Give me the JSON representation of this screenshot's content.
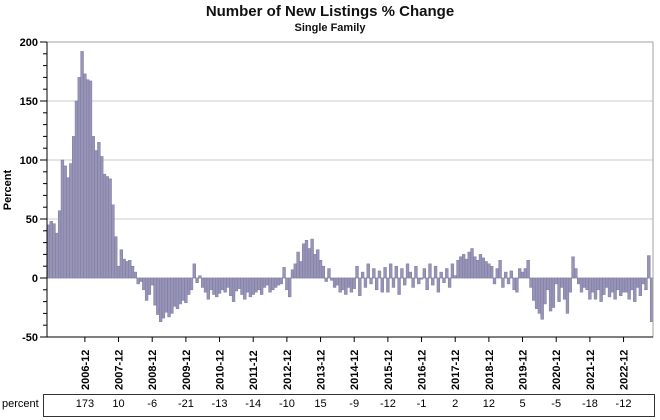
{
  "header": {
    "title": "Number of New Listings % Change",
    "subtitle": "Single Family"
  },
  "y_axis": {
    "label": "Percent",
    "major_ticks": [
      200,
      150,
      100,
      50,
      0,
      -50
    ],
    "minor_step": 10,
    "min": -50,
    "max": 200
  },
  "x_axis": {
    "tick_labels": [
      "2006-12",
      "2007-12",
      "2008-12",
      "2009-12",
      "2010-12",
      "2011-12",
      "2012-12",
      "2013-12",
      "2014-12",
      "2015-12",
      "2016-12",
      "2017-12",
      "2018-12",
      "2019-12",
      "2020-12",
      "2021-12",
      "2022-12"
    ]
  },
  "table": {
    "row_label": "percent",
    "values": [
      173,
      10,
      -6,
      -21,
      -13,
      -14,
      -10,
      15,
      -9,
      -12,
      -1,
      2,
      12,
      5,
      -5,
      -18,
      -12
    ]
  },
  "colors": {
    "bar_fill": "#9794b8",
    "bar_stroke": "#7b799e",
    "grid": "#cccccc",
    "frame": "#a0a0a0",
    "axis": "#000000",
    "table_border": "#333333"
  },
  "chart_data": {
    "type": "bar",
    "title": "Number of New Listings % Change",
    "subtitle": "Single Family",
    "xlabel": "",
    "ylabel": "Percent",
    "ylim": [
      -50,
      200
    ],
    "grid": true,
    "legend": false,
    "x_start": "2005-11",
    "x_freq": "monthly",
    "x_tick_labels": [
      "2006-12",
      "2007-12",
      "2008-12",
      "2009-12",
      "2010-12",
      "2011-12",
      "2012-12",
      "2013-12",
      "2014-12",
      "2015-12",
      "2016-12",
      "2017-12",
      "2018-12",
      "2019-12",
      "2020-12",
      "2021-12",
      "2022-12"
    ],
    "december_values": [
      173,
      10,
      -6,
      -21,
      -13,
      -14,
      -10,
      15,
      -9,
      -12,
      -1,
      2,
      12,
      5,
      -5,
      -18,
      -12
    ],
    "values": [
      45,
      48,
      46,
      38,
      57,
      100,
      95,
      85,
      97,
      120,
      150,
      170,
      192,
      173,
      168,
      167,
      120,
      108,
      115,
      103,
      88,
      86,
      84,
      62,
      35,
      10,
      24,
      16,
      14,
      15,
      10,
      5,
      -5,
      -3,
      -10,
      -19,
      -14,
      -6,
      -23,
      -31,
      -37,
      -34,
      -29,
      -33,
      -30,
      -24,
      -26,
      -22,
      -19,
      -21,
      -14,
      -10,
      12,
      -4,
      2,
      -8,
      -12,
      -18,
      -10,
      -14,
      -16,
      -13,
      -10,
      -12,
      -8,
      -15,
      -20,
      -11,
      -9,
      -14,
      -18,
      -12,
      -16,
      -14,
      -12,
      -10,
      -14,
      -8,
      -6,
      -12,
      -10,
      -8,
      -6,
      -5,
      9,
      -10,
      -16,
      7,
      12,
      22,
      14,
      29,
      32,
      25,
      33,
      20,
      24,
      15,
      10,
      -3,
      8,
      -2,
      -8,
      -6,
      -12,
      -10,
      -14,
      -8,
      -12,
      -9,
      10,
      -15,
      5,
      -8,
      12,
      -5,
      8,
      -10,
      6,
      -12,
      9,
      -12,
      12,
      -8,
      10,
      -14,
      8,
      -6,
      12,
      5,
      -8,
      10,
      -5,
      -1,
      8,
      -10,
      12,
      -6,
      10,
      -12,
      5,
      -4,
      8,
      -8,
      12,
      2,
      15,
      18,
      20,
      16,
      22,
      25,
      18,
      15,
      20,
      17,
      14,
      12,
      10,
      -5,
      8,
      15,
      -8,
      5,
      -5,
      6,
      -10,
      -12,
      8,
      5,
      8,
      15,
      -8,
      -19,
      -26,
      -30,
      -35,
      -22,
      -10,
      -28,
      -25,
      -5,
      -20,
      -8,
      -18,
      -30,
      -12,
      18,
      8,
      -5,
      -12,
      -8,
      -10,
      -18,
      -12,
      -18,
      -10,
      -20,
      -14,
      -8,
      -16,
      -12,
      -18,
      -10,
      -15,
      -12,
      -12,
      -18,
      -10,
      -20,
      -8,
      -15,
      -5,
      -10,
      19,
      -37
    ]
  }
}
